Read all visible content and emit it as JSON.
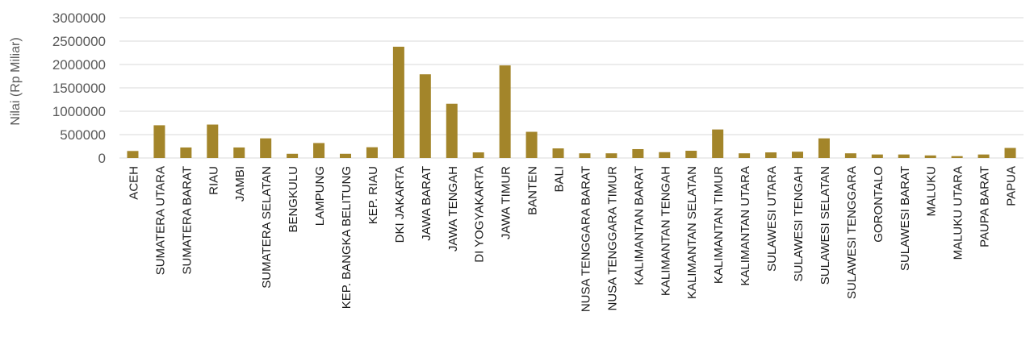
{
  "chart_data": {
    "type": "bar",
    "ylabel": "Nilai (Rp Miliar)",
    "ylim": [
      0,
      3000000
    ],
    "yticks": [
      0,
      500000,
      1000000,
      1500000,
      2000000,
      2500000,
      3000000
    ],
    "grid": true,
    "bar_color": "#A3852A",
    "categories": [
      "ACEH",
      "SUMATERA UTARA",
      "SUMATERA BARAT",
      "RIAU",
      "JAMBI",
      "SUMATERA SELATAN",
      "BENGKULU",
      "LAMPUNG",
      "KEP. BANGKA BELITUNG",
      "KEP. RIAU",
      "DKI JAKARTA",
      "JAWA BARAT",
      "JAWA TENGAH",
      "DI YOGYAKARTA",
      "JAWA TIMUR",
      "BANTEN",
      "BALI",
      "NUSA TENGGARA BARAT",
      "NUSA TENGGARA TIMUR",
      "KALIMANTAN BARAT",
      "KALIMANTAN TENGAH",
      "KALIMANTAN SELATAN",
      "KALIMANTAN TIMUR",
      "KALIMANTAN UTARA",
      "SULAWESI UTARA",
      "SULAWESI TENGAH",
      "SULAWESI SELATAN",
      "SULAWESI TENGGARA",
      "GORONTALO",
      "SULAWESI BARAT",
      "MALUKU",
      "MALUKU UTARA",
      "PAUPA BARAT",
      "PAPUA"
    ],
    "values": [
      150000,
      700000,
      225000,
      715000,
      225000,
      420000,
      90000,
      320000,
      90000,
      230000,
      2380000,
      1790000,
      1160000,
      120000,
      1980000,
      560000,
      205000,
      100000,
      100000,
      190000,
      125000,
      155000,
      610000,
      100000,
      120000,
      135000,
      420000,
      100000,
      75000,
      75000,
      55000,
      40000,
      75000,
      215000
    ]
  }
}
